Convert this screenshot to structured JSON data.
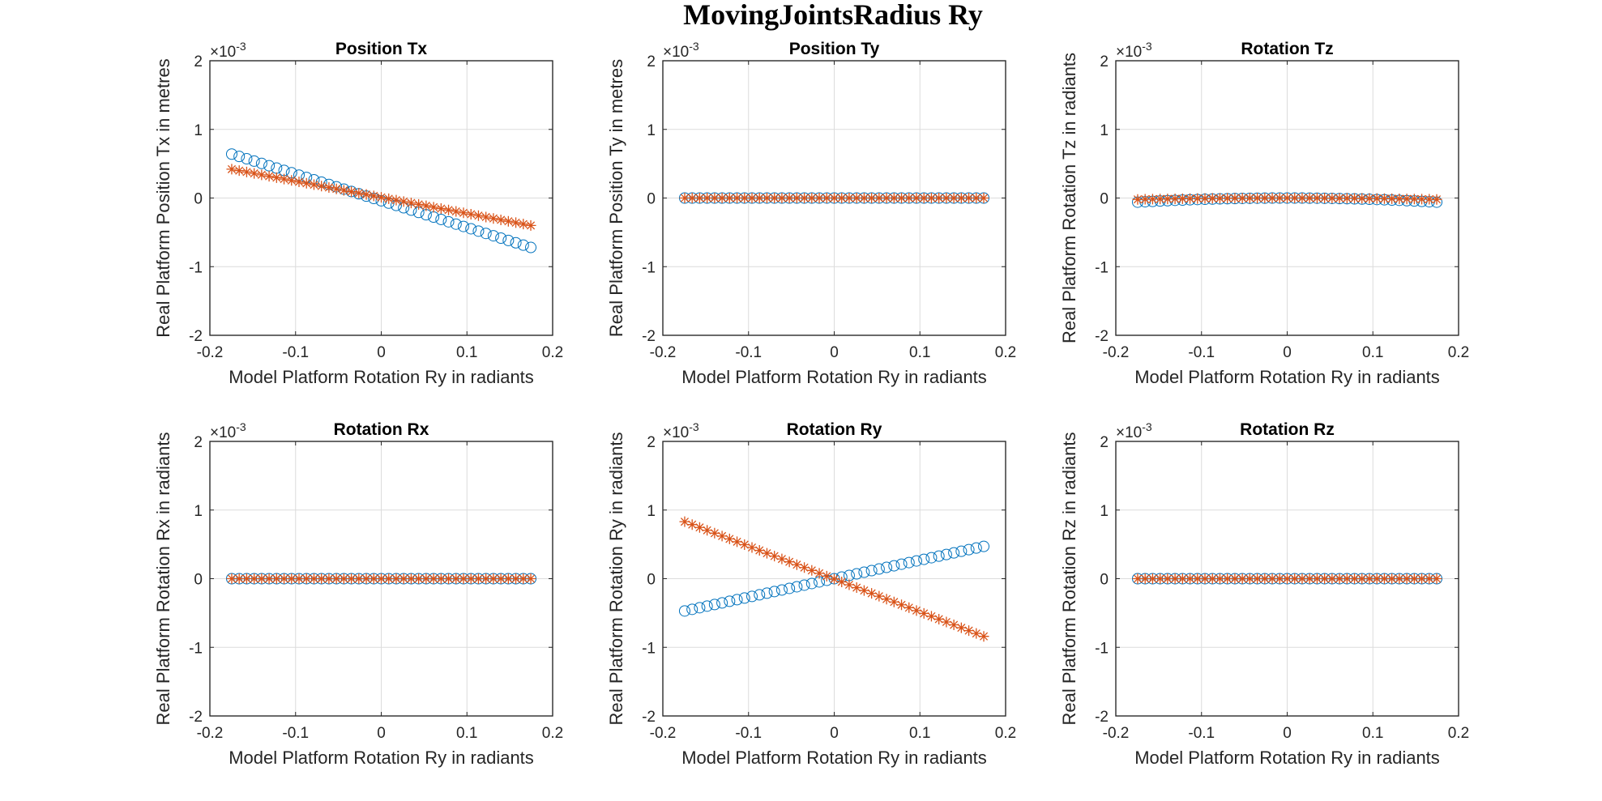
{
  "figure": {
    "title": "MovingJointsRadius Ry"
  },
  "colors": {
    "series_circle": "#0072BD",
    "series_star": "#D95319",
    "axis": "#262626",
    "grid": "#dcdcdc"
  },
  "chart_data": [
    {
      "type": "scatter",
      "title": "Position Tx",
      "xlabel": "Model Platform Rotation Ry in radiants",
      "ylabel": "Real Platform Position Tx in metres",
      "xlim": [
        -0.2,
        0.2
      ],
      "ylim": [
        -2,
        2
      ],
      "xticks": [
        "-0.2",
        "-0.1",
        "0",
        "0.1",
        "0.2"
      ],
      "yticks": [
        "-2",
        "-1",
        "0",
        "1",
        "2"
      ],
      "y_exponent": "×10",
      "y_exponent_power": "-3",
      "grid": true,
      "series": [
        {
          "marker": "circle",
          "x_range": [
            -0.1745,
            0.1745
          ],
          "n": 41,
          "y_ends": [
            0.64,
            -0.72
          ]
        },
        {
          "marker": "star",
          "x_range": [
            -0.1745,
            0.1745
          ],
          "n": 41,
          "y_ends": [
            0.42,
            -0.4
          ]
        }
      ]
    },
    {
      "type": "scatter",
      "title": "Position Ty",
      "xlabel": "Model Platform Rotation Ry in radiants",
      "ylabel": "Real Platform Position Ty in metres",
      "xlim": [
        -0.2,
        0.2
      ],
      "ylim": [
        -2,
        2
      ],
      "xticks": [
        "-0.2",
        "-0.1",
        "0",
        "0.1",
        "0.2"
      ],
      "yticks": [
        "-2",
        "-1",
        "0",
        "1",
        "2"
      ],
      "y_exponent": "×10",
      "y_exponent_power": "-3",
      "grid": true,
      "series": [
        {
          "marker": "circle",
          "x_range": [
            -0.1745,
            0.1745
          ],
          "n": 41,
          "y_ends": [
            0,
            0
          ]
        },
        {
          "marker": "star",
          "x_range": [
            -0.1745,
            0.1745
          ],
          "n": 41,
          "y_ends": [
            0,
            0
          ]
        }
      ]
    },
    {
      "type": "scatter",
      "title": "Rotation Tz",
      "xlabel": "Model Platform Rotation Ry in radiants",
      "ylabel": "Real Platform Rotation Tz in radiants",
      "xlim": [
        -0.2,
        0.2
      ],
      "ylim": [
        -2,
        2
      ],
      "xticks": [
        "-0.2",
        "-0.1",
        "0",
        "0.1",
        "0.2"
      ],
      "yticks": [
        "-2",
        "-1",
        "0",
        "1",
        "2"
      ],
      "y_exponent": "×10",
      "y_exponent_power": "-3",
      "grid": true,
      "series": [
        {
          "marker": "circle",
          "x_range": [
            -0.1745,
            0.1745
          ],
          "n": 41,
          "curve": "parabola",
          "y_center": 0.0,
          "y_ends": [
            -0.06,
            -0.06
          ]
        },
        {
          "marker": "star",
          "x_range": [
            -0.1745,
            0.1745
          ],
          "n": 41,
          "curve": "parabola",
          "y_center": 0.0,
          "y_ends": [
            -0.02,
            -0.02
          ]
        }
      ]
    },
    {
      "type": "scatter",
      "title": "Rotation Rx",
      "xlabel": "Model Platform Rotation Ry in radiants",
      "ylabel": "Real Platform Rotation Rx in radiants",
      "xlim": [
        -0.2,
        0.2
      ],
      "ylim": [
        -2,
        2
      ],
      "xticks": [
        "-0.2",
        "-0.1",
        "0",
        "0.1",
        "0.2"
      ],
      "yticks": [
        "-2",
        "-1",
        "0",
        "1",
        "2"
      ],
      "y_exponent": "×10",
      "y_exponent_power": "-3",
      "grid": true,
      "series": [
        {
          "marker": "circle",
          "x_range": [
            -0.1745,
            0.1745
          ],
          "n": 41,
          "y_ends": [
            0,
            0
          ]
        },
        {
          "marker": "star",
          "x_range": [
            -0.1745,
            0.1745
          ],
          "n": 41,
          "y_ends": [
            0,
            0
          ]
        }
      ]
    },
    {
      "type": "scatter",
      "title": "Rotation Ry",
      "xlabel": "Model Platform Rotation Ry in radiants",
      "ylabel": "Real Platform Rotation Ry in radiants",
      "xlim": [
        -0.2,
        0.2
      ],
      "ylim": [
        -2,
        2
      ],
      "xticks": [
        "-0.2",
        "-0.1",
        "0",
        "0.1",
        "0.2"
      ],
      "yticks": [
        "-2",
        "-1",
        "0",
        "1",
        "2"
      ],
      "y_exponent": "×10",
      "y_exponent_power": "-3",
      "grid": true,
      "series": [
        {
          "marker": "circle",
          "x_range": [
            -0.1745,
            0.1745
          ],
          "n": 41,
          "y_ends": [
            -0.47,
            0.47
          ]
        },
        {
          "marker": "star",
          "x_range": [
            -0.1745,
            0.1745
          ],
          "n": 41,
          "y_ends": [
            0.83,
            -0.84
          ]
        }
      ]
    },
    {
      "type": "scatter",
      "title": "Rotation Rz",
      "xlabel": "Model Platform Rotation Ry in radiants",
      "ylabel": "Real Platform Rotation Rz in radiants",
      "xlim": [
        -0.2,
        0.2
      ],
      "ylim": [
        -2,
        2
      ],
      "xticks": [
        "-0.2",
        "-0.1",
        "0",
        "0.1",
        "0.2"
      ],
      "yticks": [
        "-2",
        "-1",
        "0",
        "1",
        "2"
      ],
      "y_exponent": "×10",
      "y_exponent_power": "-3",
      "grid": true,
      "series": [
        {
          "marker": "circle",
          "x_range": [
            -0.1745,
            0.1745
          ],
          "n": 41,
          "y_ends": [
            0,
            0
          ]
        },
        {
          "marker": "star",
          "x_range": [
            -0.1745,
            0.1745
          ],
          "n": 41,
          "y_ends": [
            0,
            0
          ]
        }
      ]
    }
  ]
}
